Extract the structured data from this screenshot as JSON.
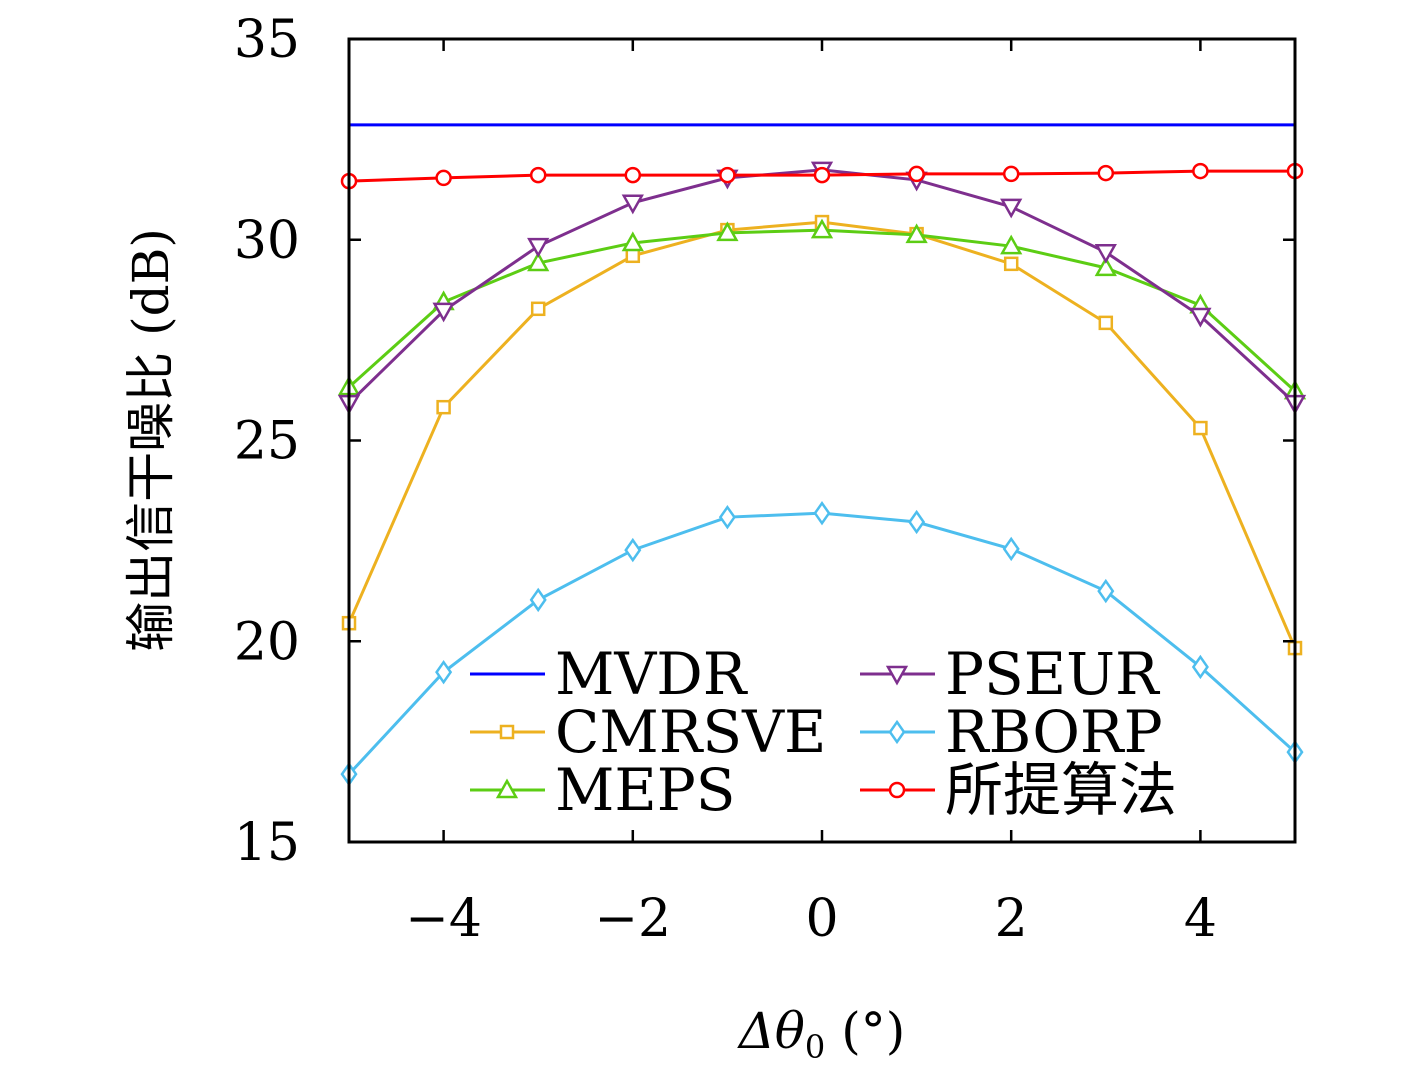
{
  "chart_data": {
    "type": "line",
    "xlabel": "Δθ0 (°)",
    "xlabel_main": "Δθ",
    "xlabel_sub": "0",
    "xlabel_unit": "(°)",
    "ylabel": "输出信干噪比 (dB)",
    "xlim": [
      -5,
      5
    ],
    "ylim": [
      15,
      35
    ],
    "xticks": [
      -4,
      -2,
      0,
      2,
      4
    ],
    "xtick_labels": [
      "−4",
      "−2",
      "0",
      "2",
      "4"
    ],
    "yticks": [
      15,
      20,
      25,
      30,
      35
    ],
    "ytick_labels": [
      "15",
      "20",
      "25",
      "30",
      "35"
    ],
    "grid": false,
    "legend_placement": "bottom-center",
    "x": [
      -5,
      -4,
      -3,
      -2,
      -1,
      0,
      1,
      2,
      3,
      4,
      5
    ],
    "series": [
      {
        "name": "MVDR",
        "color": "#0000ff",
        "marker": "none",
        "values": [
          32.86,
          32.86,
          32.86,
          32.86,
          32.86,
          32.86,
          32.86,
          32.86,
          32.86,
          32.86,
          32.86
        ]
      },
      {
        "name": "CMRSVE",
        "color": "#edb120",
        "marker": "square",
        "values": [
          20.45,
          25.83,
          28.28,
          29.6,
          30.24,
          30.44,
          30.14,
          29.4,
          27.93,
          25.31,
          19.83
        ]
      },
      {
        "name": "MEPS",
        "color": "#5ccd14",
        "marker": "triangle-up",
        "values": [
          26.33,
          28.45,
          29.42,
          29.92,
          30.17,
          30.24,
          30.12,
          29.84,
          29.3,
          28.37,
          26.23
        ]
      },
      {
        "name": "PSEUR",
        "color": "#7e2f8e",
        "marker": "triangle-down",
        "values": [
          25.93,
          28.23,
          29.84,
          30.92,
          31.54,
          31.74,
          31.49,
          30.82,
          29.69,
          28.1,
          25.93
        ]
      },
      {
        "name": "RBORP",
        "color": "#4dbeee",
        "marker": "diamond",
        "values": [
          16.69,
          19.23,
          21.03,
          22.27,
          23.09,
          23.19,
          22.97,
          22.3,
          21.25,
          19.36,
          17.24
        ]
      },
      {
        "name": "所提算法",
        "color": "#ff0000",
        "marker": "circle",
        "values": [
          31.46,
          31.54,
          31.61,
          31.61,
          31.61,
          31.61,
          31.64,
          31.64,
          31.66,
          31.71,
          31.71
        ]
      }
    ]
  }
}
